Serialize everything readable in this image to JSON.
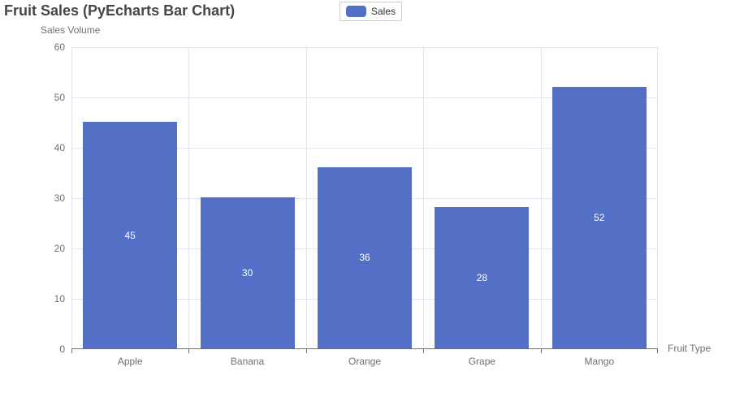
{
  "title": "Fruit Sales (PyEcharts Bar Chart)",
  "legend": {
    "items": [
      {
        "label": "Sales",
        "color": "#5470c6"
      }
    ],
    "position": "top-center"
  },
  "chart_data": {
    "type": "bar",
    "categories": [
      "Apple",
      "Banana",
      "Orange",
      "Grape",
      "Mango"
    ],
    "series": [
      {
        "name": "Sales",
        "values": [
          45,
          30,
          36,
          28,
          52
        ]
      }
    ],
    "title": "Fruit Sales (PyEcharts Bar Chart)",
    "xlabel": "Fruit Type",
    "ylabel": "Sales Volume",
    "ylim": [
      0,
      60
    ],
    "ytick_step": 10,
    "yticks": [
      0,
      10,
      20,
      30,
      40,
      50,
      60
    ],
    "grid": true,
    "value_labels": "inside-center-white",
    "legend_position": "top-center"
  },
  "colors": {
    "bar": "#5470c6",
    "grid_line": "#e0e6f1",
    "axis_line": "#6e7079",
    "tick_text": "#6e7079",
    "title_text": "#464646",
    "legend_text": "#333333",
    "legend_border": "#cccccc",
    "value_label": "#ffffff",
    "background": "#ffffff"
  }
}
